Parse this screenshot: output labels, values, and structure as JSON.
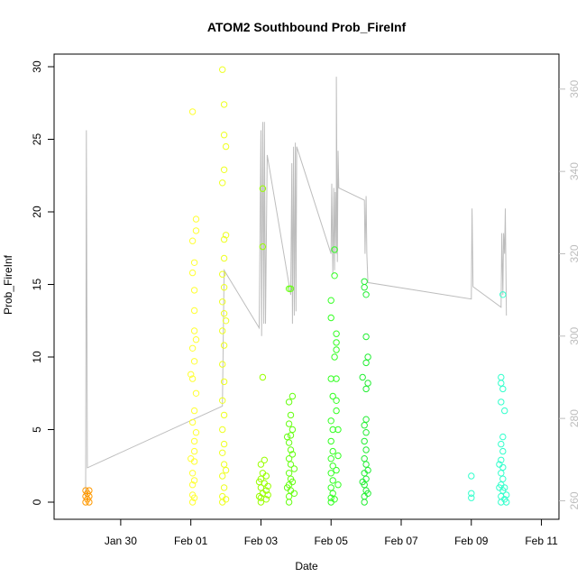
{
  "chart_data": {
    "type": "scatter",
    "title": "ATOM2 Southbound Prob_FireInf",
    "xlabel": "Date",
    "ylabel": "Prob_FireInf",
    "x_ticks": [
      "Jan 30",
      "Feb 01",
      "Feb 03",
      "Feb 05",
      "Feb 07",
      "Feb 09",
      "Feb 11"
    ],
    "x_tick_days": [
      30,
      32,
      34,
      36,
      38,
      40,
      42
    ],
    "xlim": [
      28.1,
      42.5
    ],
    "ylim": [
      0,
      30
    ],
    "y_ticks": [
      0,
      5,
      10,
      15,
      20,
      25,
      30
    ],
    "y2_ticks": [
      260,
      280,
      300,
      320,
      340,
      360
    ],
    "y2lim": [
      255.5,
      368.5
    ],
    "grid": false,
    "colors": {
      "secondary_line": "#bdbdbd",
      "secondary_axis": "#bdbdbd"
    },
    "series": [
      {
        "color": "#ff9900",
        "points": [
          [
            29.0,
            0.0
          ],
          [
            29.0,
            0.4
          ],
          [
            29.0,
            0.8
          ],
          [
            29.05,
            0.2
          ],
          [
            29.05,
            0.6
          ],
          [
            29.1,
            0.0
          ],
          [
            29.1,
            0.4
          ],
          [
            29.1,
            0.8
          ]
        ]
      },
      {
        "color": "#ffff33",
        "points": [
          [
            32.05,
            0.0
          ],
          [
            32.05,
            0.5
          ],
          [
            32.05,
            1.2
          ],
          [
            32.05,
            2.0
          ],
          [
            32.1,
            2.8
          ],
          [
            32.1,
            3.5
          ],
          [
            32.1,
            4.2
          ],
          [
            32.05,
            5.5
          ],
          [
            32.1,
            6.3
          ],
          [
            32.05,
            8.5
          ],
          [
            32.1,
            9.7
          ],
          [
            32.05,
            10.6
          ],
          [
            32.1,
            11.8
          ],
          [
            32.1,
            13.2
          ],
          [
            32.1,
            14.6
          ],
          [
            32.05,
            15.8
          ],
          [
            32.1,
            16.5
          ],
          [
            32.05,
            18.0
          ],
          [
            32.15,
            18.7
          ],
          [
            32.15,
            19.5
          ],
          [
            32.05,
            26.9
          ],
          [
            32.1,
            0.3
          ],
          [
            32.1,
            1.5
          ],
          [
            32.15,
            4.8
          ],
          [
            32.15,
            7.5
          ],
          [
            32.15,
            11.2
          ],
          [
            32.0,
            8.8
          ],
          [
            32.0,
            3.0
          ]
        ]
      },
      {
        "color": "#eeff22",
        "points": [
          [
            32.9,
            0.0
          ],
          [
            32.9,
            0.4
          ],
          [
            32.95,
            1.0
          ],
          [
            32.9,
            1.8
          ],
          [
            32.95,
            2.6
          ],
          [
            32.9,
            3.4
          ],
          [
            32.95,
            4.0
          ],
          [
            32.9,
            5.0
          ],
          [
            32.95,
            6.0
          ],
          [
            32.9,
            7.0
          ],
          [
            32.95,
            8.3
          ],
          [
            32.9,
            9.5
          ],
          [
            32.95,
            10.8
          ],
          [
            32.9,
            11.8
          ],
          [
            32.95,
            13.0
          ],
          [
            32.9,
            13.8
          ],
          [
            32.95,
            14.8
          ],
          [
            32.9,
            15.7
          ],
          [
            32.95,
            16.8
          ],
          [
            32.95,
            18.1
          ],
          [
            33.0,
            18.4
          ],
          [
            33.0,
            24.5
          ],
          [
            32.95,
            25.3
          ],
          [
            32.95,
            27.4
          ],
          [
            32.9,
            29.8
          ],
          [
            32.95,
            22.9
          ],
          [
            32.9,
            22.0
          ],
          [
            33.0,
            0.2
          ],
          [
            33.0,
            2.2
          ],
          [
            33.0,
            12.5
          ]
        ]
      },
      {
        "color": "#99ff00",
        "points": [
          [
            34.0,
            0.0
          ],
          [
            34.0,
            0.3
          ],
          [
            34.05,
            0.6
          ],
          [
            34.0,
            1.0
          ],
          [
            34.1,
            1.3
          ],
          [
            34.0,
            1.6
          ],
          [
            34.05,
            2.0
          ],
          [
            34.0,
            2.6
          ],
          [
            34.1,
            2.9
          ],
          [
            34.05,
            8.6
          ],
          [
            34.05,
            17.6
          ],
          [
            34.05,
            21.6
          ],
          [
            34.15,
            0.2
          ],
          [
            34.15,
            0.8
          ],
          [
            34.15,
            1.8
          ],
          [
            34.2,
            0.5
          ],
          [
            34.2,
            1.1
          ],
          [
            33.95,
            0.4
          ],
          [
            33.95,
            1.4
          ]
        ]
      },
      {
        "color": "#66ff11",
        "points": [
          [
            34.8,
            0.0
          ],
          [
            34.8,
            0.4
          ],
          [
            34.85,
            0.8
          ],
          [
            34.8,
            1.2
          ],
          [
            34.85,
            1.6
          ],
          [
            34.8,
            2.0
          ],
          [
            34.85,
            2.6
          ],
          [
            34.8,
            3.0
          ],
          [
            34.85,
            3.6
          ],
          [
            34.8,
            4.1
          ],
          [
            34.85,
            4.6
          ],
          [
            34.8,
            5.4
          ],
          [
            34.85,
            6.0
          ],
          [
            34.8,
            6.9
          ],
          [
            34.9,
            7.3
          ],
          [
            34.9,
            5.0
          ],
          [
            34.9,
            3.3
          ],
          [
            34.9,
            1.4
          ],
          [
            34.95,
            0.6
          ],
          [
            34.95,
            2.3
          ],
          [
            34.75,
            4.5
          ],
          [
            34.75,
            1.0
          ],
          [
            34.85,
            14.7
          ],
          [
            34.8,
            14.7
          ]
        ]
      },
      {
        "color": "#33ff22",
        "points": [
          [
            36.0,
            0.0
          ],
          [
            36.0,
            0.3
          ],
          [
            36.05,
            0.6
          ],
          [
            36.0,
            1.0
          ],
          [
            36.05,
            1.5
          ],
          [
            36.0,
            2.0
          ],
          [
            36.05,
            2.5
          ],
          [
            36.0,
            3.0
          ],
          [
            36.05,
            3.5
          ],
          [
            36.0,
            4.2
          ],
          [
            36.05,
            5.0
          ],
          [
            36.0,
            5.6
          ],
          [
            36.05,
            7.3
          ],
          [
            36.0,
            8.5
          ],
          [
            36.1,
            10.0
          ],
          [
            36.0,
            12.7
          ],
          [
            36.0,
            13.9
          ],
          [
            36.15,
            11.0
          ],
          [
            36.15,
            11.6
          ],
          [
            36.15,
            10.5
          ],
          [
            36.15,
            8.5
          ],
          [
            36.15,
            7.0
          ],
          [
            36.15,
            6.3
          ],
          [
            36.2,
            5.0
          ],
          [
            36.2,
            3.2
          ],
          [
            36.15,
            2.2
          ],
          [
            36.2,
            1.2
          ],
          [
            36.1,
            15.6
          ],
          [
            36.1,
            17.4
          ],
          [
            36.1,
            0.2
          ]
        ]
      },
      {
        "color": "#22ee33",
        "points": [
          [
            36.95,
            0.0
          ],
          [
            36.95,
            0.4
          ],
          [
            37.0,
            0.8
          ],
          [
            36.95,
            1.2
          ],
          [
            37.0,
            1.6
          ],
          [
            36.95,
            2.0
          ],
          [
            37.0,
            2.6
          ],
          [
            36.95,
            3.0
          ],
          [
            37.0,
            3.6
          ],
          [
            36.95,
            4.2
          ],
          [
            37.0,
            4.8
          ],
          [
            36.95,
            5.3
          ],
          [
            37.0,
            5.7
          ],
          [
            37.0,
            7.8
          ],
          [
            37.05,
            8.2
          ],
          [
            37.0,
            9.6
          ],
          [
            37.05,
            10.0
          ],
          [
            37.0,
            11.4
          ],
          [
            36.95,
            14.8
          ],
          [
            36.95,
            15.2
          ],
          [
            37.0,
            14.3
          ],
          [
            36.9,
            8.6
          ],
          [
            37.05,
            2.2
          ],
          [
            37.05,
            0.6
          ],
          [
            36.9,
            1.4
          ]
        ]
      },
      {
        "color": "#33ffcc",
        "points": [
          [
            40.0,
            0.3
          ],
          [
            40.0,
            0.6
          ],
          [
            40.0,
            1.8
          ],
          [
            40.85,
            0.0
          ],
          [
            40.85,
            0.4
          ],
          [
            40.9,
            0.8
          ],
          [
            40.85,
            1.2
          ],
          [
            40.9,
            1.6
          ],
          [
            40.85,
            2.0
          ],
          [
            40.9,
            2.4
          ],
          [
            40.85,
            2.9
          ],
          [
            40.9,
            3.5
          ],
          [
            40.85,
            4.0
          ],
          [
            40.9,
            4.5
          ],
          [
            40.85,
            6.9
          ],
          [
            40.9,
            7.8
          ],
          [
            40.85,
            8.2
          ],
          [
            40.85,
            8.6
          ],
          [
            40.95,
            6.3
          ],
          [
            40.9,
            14.3
          ],
          [
            40.95,
            0.2
          ],
          [
            40.95,
            1.0
          ],
          [
            41.0,
            0.5
          ],
          [
            41.0,
            0.0
          ],
          [
            40.8,
            2.6
          ],
          [
            40.8,
            1.0
          ]
        ]
      }
    ],
    "secondary_line": [
      [
        29.0,
        261
      ],
      [
        29.02,
        350
      ],
      [
        29.05,
        268
      ],
      [
        32.9,
        283
      ],
      [
        32.95,
        316
      ],
      [
        33.95,
        302
      ],
      [
        34.0,
        350
      ],
      [
        34.02,
        300
      ],
      [
        34.05,
        352
      ],
      [
        34.08,
        303
      ],
      [
        34.1,
        352
      ],
      [
        34.13,
        303
      ],
      [
        34.18,
        344
      ],
      [
        34.85,
        310
      ],
      [
        34.88,
        342
      ],
      [
        34.9,
        303
      ],
      [
        34.93,
        346
      ],
      [
        34.95,
        305
      ],
      [
        34.98,
        347
      ],
      [
        35.0,
        306
      ],
      [
        35.02,
        346
      ],
      [
        36.0,
        320
      ],
      [
        36.02,
        337
      ],
      [
        36.05,
        315
      ],
      [
        36.08,
        336
      ],
      [
        36.1,
        316
      ],
      [
        36.12,
        335
      ],
      [
        36.15,
        320
      ],
      [
        36.15,
        363
      ],
      [
        36.18,
        318
      ],
      [
        36.2,
        345
      ],
      [
        36.22,
        336
      ],
      [
        36.95,
        333
      ],
      [
        36.97,
        320
      ],
      [
        37.0,
        334
      ],
      [
        37.02,
        320
      ],
      [
        37.05,
        313
      ],
      [
        40.0,
        309
      ],
      [
        40.02,
        331
      ],
      [
        40.05,
        312
      ],
      [
        40.85,
        307
      ],
      [
        40.87,
        325
      ],
      [
        40.9,
        310
      ],
      [
        40.92,
        325
      ],
      [
        40.95,
        320
      ],
      [
        40.97,
        331
      ],
      [
        41.0,
        305
      ]
    ]
  }
}
